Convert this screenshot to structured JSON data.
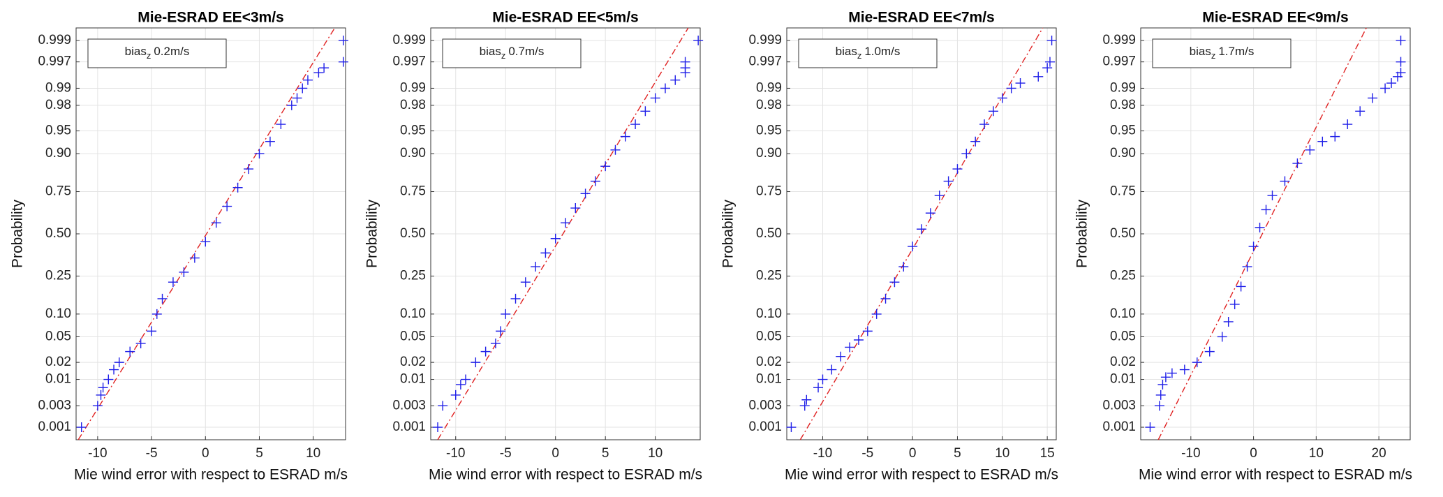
{
  "chart_data": [
    {
      "type": "probplot",
      "title": "Mie-ESRAD EE<3m/s",
      "x_label": "Mie wind error with respect to ESRAD m/s",
      "y_label": "Probability",
      "annotation": {
        "text": "bias",
        "subscript": "z",
        "value": "0.2m/s"
      },
      "xlim": [
        -12,
        13
      ],
      "xticks": [
        -10,
        -5,
        0,
        5,
        10
      ],
      "ylim": [
        0.0005,
        0.9995
      ],
      "yticks": [
        0.001,
        0.003,
        0.01,
        0.02,
        0.05,
        {
          "value": 0.1,
          "label": "0.10"
        },
        0.25,
        {
          "value": 0.5,
          "label": "0.50"
        },
        0.75,
        {
          "value": 0.9,
          "label": "0.90"
        },
        0.95,
        0.98,
        0.99,
        0.997,
        0.999
      ],
      "y_scale": "normal-probability",
      "grid": true,
      "series": [
        {
          "color": "#1f1fe8",
          "marker": "+",
          "x": [
            -11.5,
            -10,
            -9.7,
            -9.5,
            -9,
            -8.5,
            -8,
            -7,
            -6,
            -5,
            -4.5,
            -4,
            -3,
            -2,
            -1,
            0,
            1,
            2,
            3,
            4,
            5,
            6,
            7,
            8,
            8.5,
            9,
            9.5,
            10.5,
            11,
            12.8,
            12.8
          ],
          "values": [
            0.001,
            0.003,
            0.005,
            0.007,
            0.01,
            0.015,
            0.02,
            0.03,
            0.04,
            0.06,
            0.1,
            0.15,
            0.22,
            0.27,
            0.35,
            0.45,
            0.57,
            0.67,
            0.77,
            0.85,
            0.9,
            0.93,
            0.96,
            0.98,
            0.985,
            0.99,
            0.993,
            0.995,
            0.996,
            0.997,
            0.999
          ]
        }
      ],
      "fit_line": {
        "color": "#e02020",
        "x": [
          -11.8,
          12
        ],
        "values": [
          0.0005,
          0.9995
        ]
      }
    },
    {
      "type": "probplot",
      "title": "Mie-ESRAD EE<5m/s",
      "x_label": "Mie wind error with respect to ESRAD m/s",
      "y_label": "Probability",
      "annotation": {
        "text": "bias",
        "subscript": "z",
        "value": "0.7m/s"
      },
      "xlim": [
        -12.5,
        14.5
      ],
      "xticks": [
        -10,
        -5,
        0,
        5,
        10
      ],
      "ylim": [
        0.0005,
        0.9995
      ],
      "yticks": [
        0.001,
        0.003,
        0.01,
        0.02,
        0.05,
        {
          "value": 0.1,
          "label": "0.10"
        },
        0.25,
        {
          "value": 0.5,
          "label": "0.50"
        },
        0.75,
        {
          "value": 0.9,
          "label": "0.90"
        },
        0.95,
        0.98,
        0.99,
        0.997,
        0.999
      ],
      "y_scale": "normal-probability",
      "grid": true,
      "series": [
        {
          "color": "#1f1fe8",
          "marker": "+",
          "x": [
            -11.8,
            -11.3,
            -10,
            -9.5,
            -9,
            -8,
            -7,
            -6,
            -5.5,
            -5,
            -4,
            -3,
            -2,
            -1,
            0,
            1,
            2,
            3,
            4,
            5,
            6,
            7,
            8,
            9,
            10,
            11,
            12,
            13,
            13,
            13,
            14.3
          ],
          "values": [
            0.001,
            0.003,
            0.005,
            0.008,
            0.01,
            0.02,
            0.03,
            0.04,
            0.06,
            0.1,
            0.15,
            0.22,
            0.3,
            0.38,
            0.47,
            0.57,
            0.66,
            0.74,
            0.8,
            0.86,
            0.91,
            0.94,
            0.96,
            0.975,
            0.985,
            0.99,
            0.993,
            0.995,
            0.996,
            0.997,
            0.999
          ]
        }
      ],
      "fit_line": {
        "color": "#e02020",
        "x": [
          -11.8,
          13.3
        ],
        "values": [
          0.0005,
          0.9995
        ]
      }
    },
    {
      "type": "probplot",
      "title": "Mie-ESRAD EE<7m/s",
      "x_label": "Mie wind error with respect to ESRAD m/s",
      "y_label": "Probability",
      "annotation": {
        "text": "bias",
        "subscript": "z",
        "value": "1.0m/s"
      },
      "xlim": [
        -14,
        16
      ],
      "xticks": [
        -10,
        -5,
        0,
        5,
        10,
        15
      ],
      "ylim": [
        0.0005,
        0.9995
      ],
      "yticks": [
        0.001,
        0.003,
        0.01,
        0.02,
        0.05,
        {
          "value": 0.1,
          "label": "0.10"
        },
        0.25,
        {
          "value": 0.5,
          "label": "0.50"
        },
        0.75,
        {
          "value": 0.9,
          "label": "0.90"
        },
        0.95,
        0.98,
        0.99,
        0.997,
        0.999
      ],
      "y_scale": "normal-probability",
      "grid": true,
      "series": [
        {
          "color": "#1f1fe8",
          "marker": "+",
          "x": [
            -13.5,
            -12,
            -11.8,
            -10.5,
            -10,
            -9,
            -8,
            -7,
            -6,
            -5,
            -4,
            -3,
            -2,
            -1,
            0,
            1,
            2,
            3,
            4,
            5,
            6,
            7,
            8,
            9,
            10,
            11,
            12,
            14,
            15,
            15.3,
            15.5
          ],
          "values": [
            0.001,
            0.003,
            0.004,
            0.007,
            0.01,
            0.015,
            0.025,
            0.035,
            0.045,
            0.06,
            0.1,
            0.15,
            0.22,
            0.3,
            0.42,
            0.53,
            0.63,
            0.73,
            0.8,
            0.85,
            0.9,
            0.93,
            0.96,
            0.975,
            0.985,
            0.99,
            0.992,
            0.994,
            0.996,
            0.997,
            0.999
          ]
        }
      ],
      "fit_line": {
        "color": "#e02020",
        "x": [
          -12.5,
          14.5
        ],
        "values": [
          0.0005,
          0.9995
        ]
      }
    },
    {
      "type": "probplot",
      "title": "Mie-ESRAD EE<9m/s",
      "x_label": "Mie wind error with respect to ESRAD m/s",
      "y_label": "Probability",
      "annotation": {
        "text": "bias",
        "subscript": "z",
        "value": "1.7m/s"
      },
      "xlim": [
        -18,
        25
      ],
      "xticks": [
        -10,
        0,
        10,
        20
      ],
      "ylim": [
        0.0005,
        0.9995
      ],
      "yticks": [
        0.001,
        0.003,
        0.01,
        0.02,
        0.05,
        {
          "value": 0.1,
          "label": "0.10"
        },
        0.25,
        {
          "value": 0.5,
          "label": "0.50"
        },
        0.75,
        {
          "value": 0.9,
          "label": "0.90"
        },
        0.95,
        0.98,
        0.99,
        0.997,
        0.999
      ],
      "y_scale": "normal-probability",
      "grid": true,
      "series": [
        {
          "color": "#1f1fe8",
          "marker": "+",
          "x": [
            -16.5,
            -15,
            -14.8,
            -14.5,
            -14,
            -13,
            -11,
            -9,
            -7,
            -5,
            -4,
            -3,
            -2,
            -1,
            0,
            1,
            2,
            3,
            5,
            7,
            9,
            11,
            13,
            15,
            17,
            19,
            21,
            22,
            23,
            23.5,
            23.5,
            23.5
          ],
          "values": [
            0.001,
            0.003,
            0.005,
            0.008,
            0.011,
            0.013,
            0.015,
            0.02,
            0.03,
            0.05,
            0.08,
            0.13,
            0.2,
            0.3,
            0.42,
            0.54,
            0.65,
            0.73,
            0.8,
            0.87,
            0.91,
            0.93,
            0.94,
            0.96,
            0.975,
            0.985,
            0.99,
            0.992,
            0.994,
            0.995,
            0.997,
            0.999
          ]
        }
      ],
      "fit_line": {
        "color": "#e02020",
        "x": [
          -15.2,
          18
        ],
        "values": [
          0.0005,
          0.9995
        ]
      }
    }
  ]
}
